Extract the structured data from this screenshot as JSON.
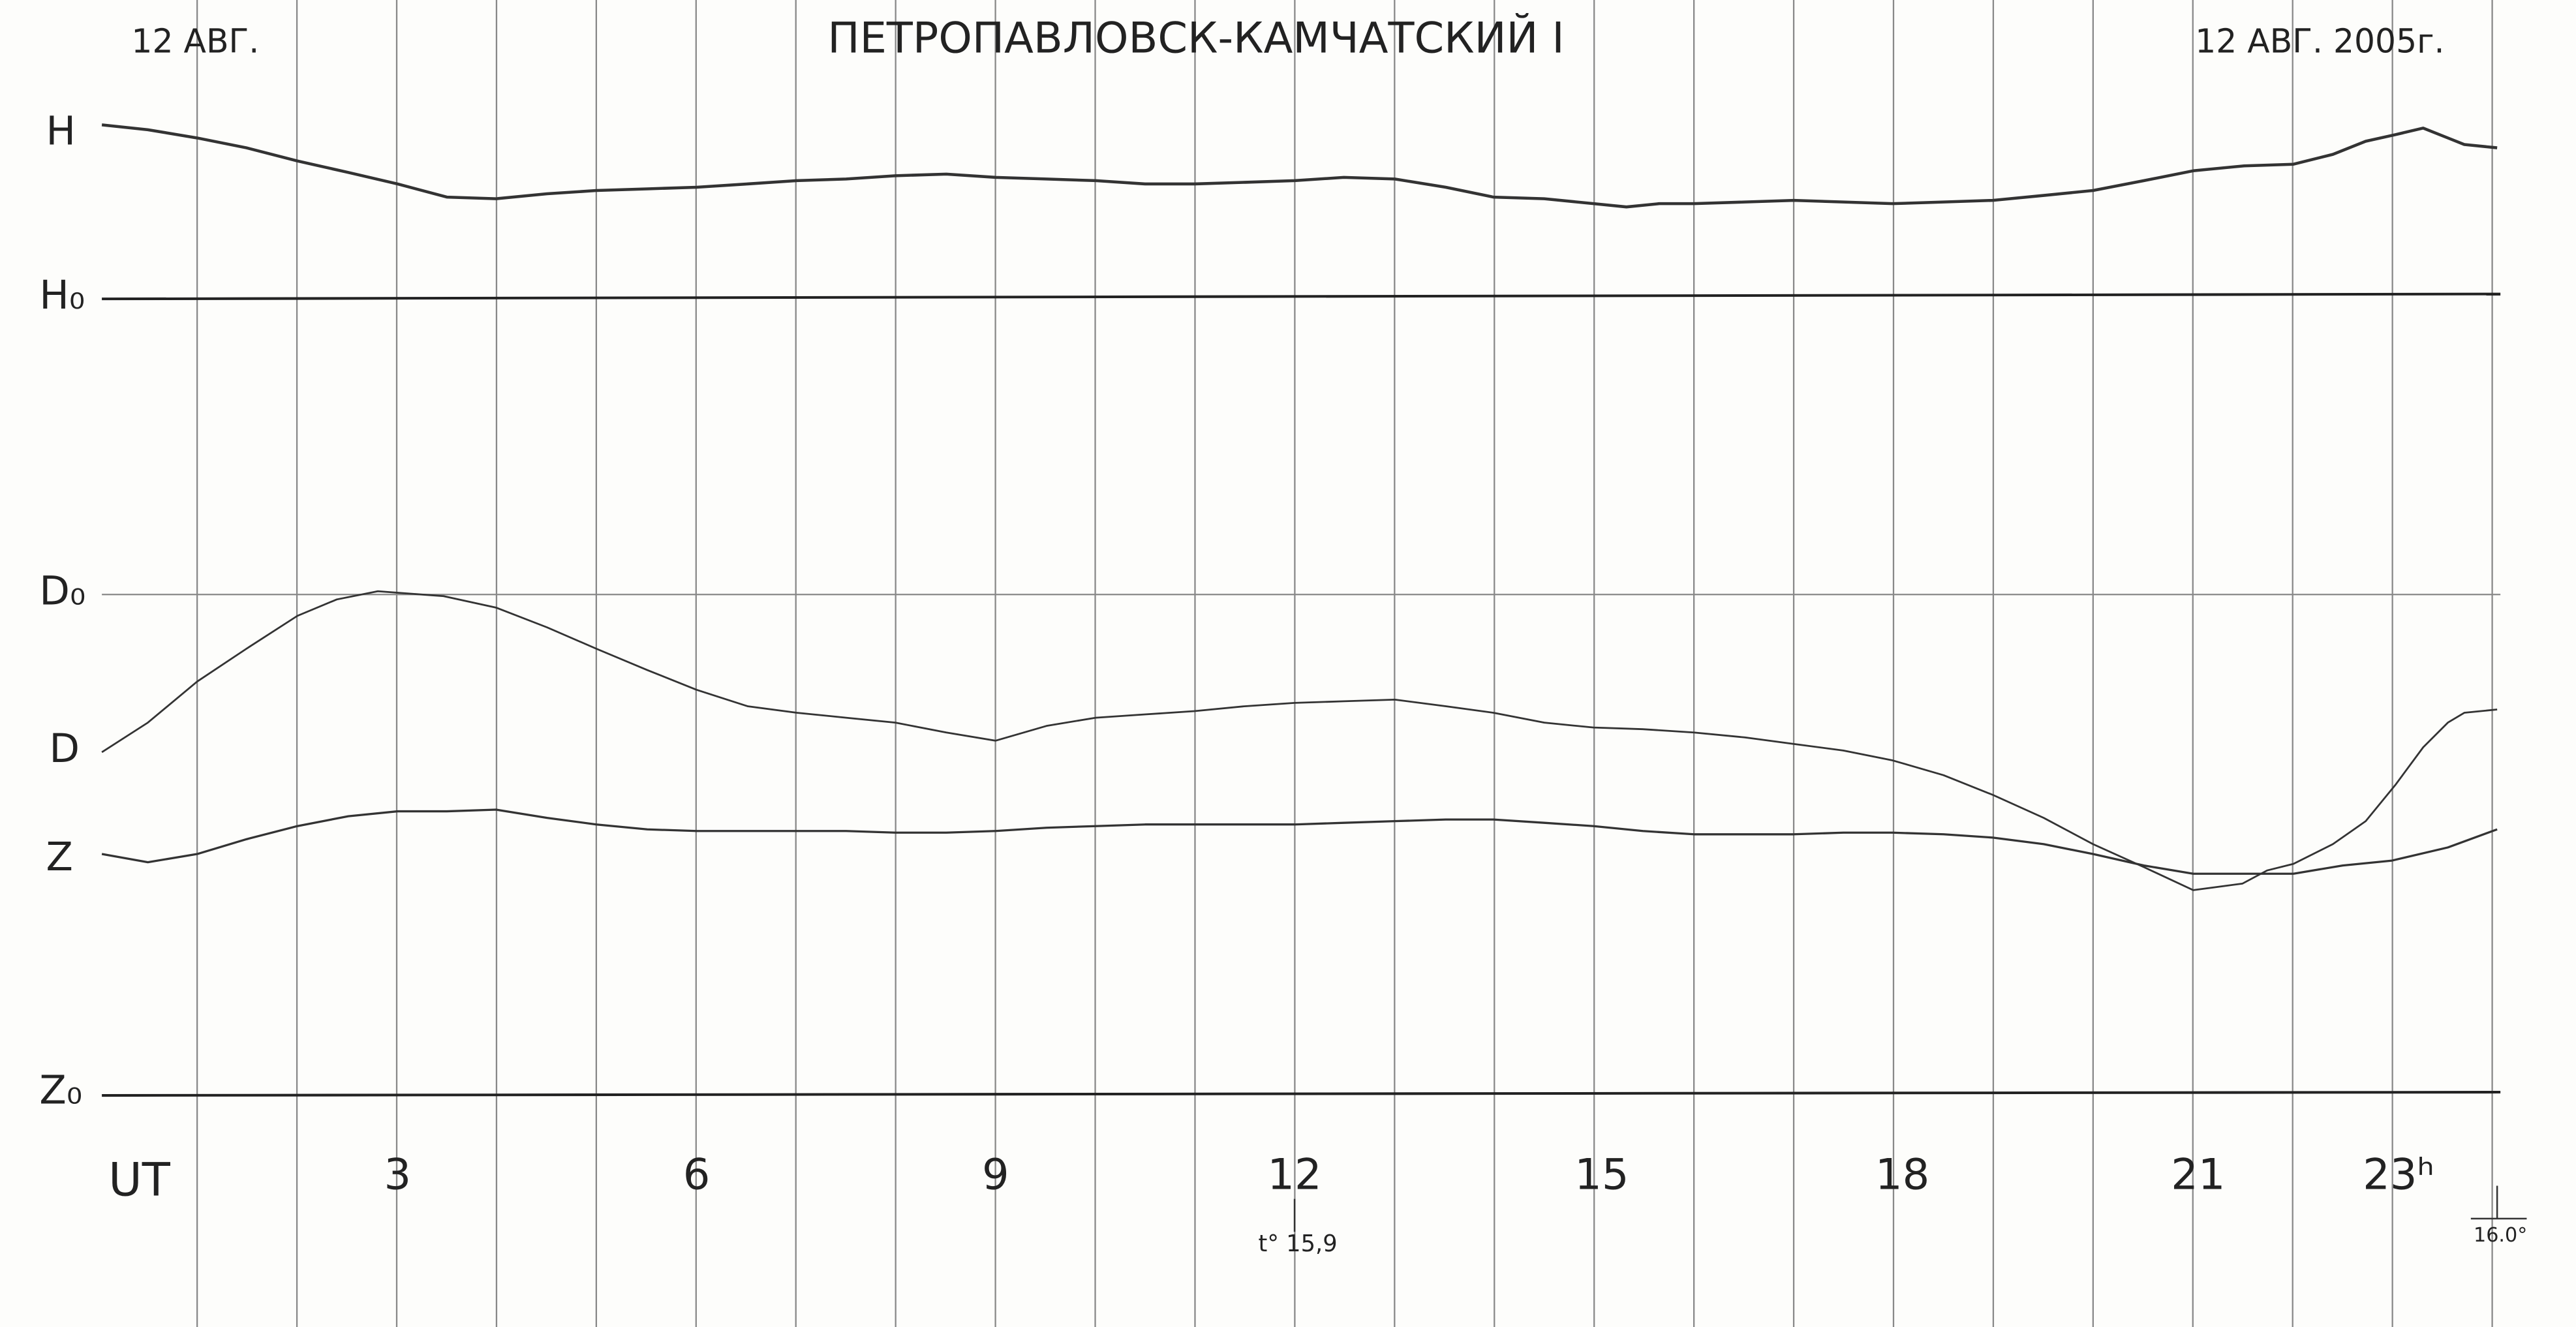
{
  "header": {
    "left_date": "12 АВГ.",
    "title": "ПЕТРОПАВЛОВСК-КАМЧАТСКИЙ I",
    "right_date": "12 АВГ. 2005г."
  },
  "traces": {
    "h": "H",
    "h_base": "H₀",
    "d_base": "D₀",
    "d": "D",
    "z": "Z",
    "z_base": "Z₀"
  },
  "time_axis": {
    "unit": "UT",
    "hours": [
      "3",
      "6",
      "9",
      "12",
      "15",
      "18",
      "21",
      "23ʰ"
    ]
  },
  "temperatures": {
    "start": "t° 15,9",
    "end": "16.0°"
  }
}
